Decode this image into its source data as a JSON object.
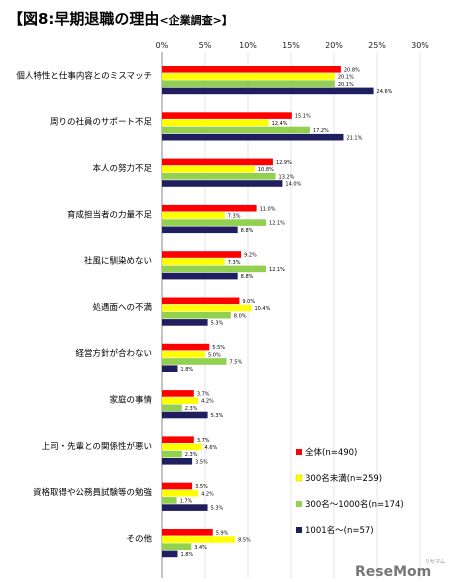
{
  "chart_data": {
    "type": "bar",
    "orientation": "horizontal",
    "title": "【図8:早期退職の理由",
    "subtitle": "<企業調査>】",
    "xlim": [
      0,
      30
    ],
    "x_ticks": [
      "0%",
      "5%",
      "10%",
      "15%",
      "20%",
      "25%",
      "30%"
    ],
    "categories": [
      "個人特性と仕事内容とのミスマッチ",
      "周りの社員のサポート不足",
      "本人の努力不足",
      "育成担当者の力量不足",
      "社風に馴染めない",
      "処遇面への不満",
      "経営方針が合わない",
      "家庭の事情",
      "上司・先輩との関係性が悪い",
      "資格取得や公務員試験等の勉強",
      "その他"
    ],
    "series": [
      {
        "name": "全体(n=490)",
        "color": "#ff0000",
        "values": [
          20.8,
          15.1,
          12.9,
          11.0,
          9.2,
          9.0,
          5.5,
          3.7,
          3.7,
          3.5,
          5.9
        ],
        "labels": [
          "20.8%",
          "15.1%",
          "12.9%",
          "11.0%",
          "9.2%",
          "9.0%",
          "5.5%",
          "3.7%",
          "3.7%",
          "3.5%",
          "5.9%"
        ]
      },
      {
        "name": "300名未満(n=259)",
        "color": "#ffff00",
        "values": [
          20.1,
          12.4,
          10.8,
          7.3,
          7.3,
          10.4,
          5.0,
          4.2,
          4.6,
          4.2,
          8.5
        ],
        "labels": [
          "20.1%",
          "12.4%",
          "10.8%",
          "7.3%",
          "7.3%",
          "10.4%",
          "5.0%",
          "4.2%",
          "4.6%",
          "4.2%",
          "8.5%"
        ]
      },
      {
        "name": "300名～1000名(n=174)",
        "color": "#92d050",
        "values": [
          20.1,
          17.2,
          13.2,
          12.1,
          12.1,
          8.0,
          7.5,
          2.3,
          2.3,
          1.7,
          3.4
        ],
        "labels": [
          "20.1%",
          "17.2%",
          "13.2%",
          "12.1%",
          "12.1%",
          "8.0%",
          "7.5%",
          "2.3%",
          "2.3%",
          "1.7%",
          "3.4%"
        ]
      },
      {
        "name": "1001名～(n=57)",
        "color": "#1f1f5f",
        "values": [
          24.6,
          21.1,
          14.0,
          8.8,
          8.8,
          5.3,
          1.8,
          5.3,
          3.5,
          5.3,
          1.8
        ],
        "labels": [
          "24.6%",
          "21.1%",
          "14.0%",
          "8.8%",
          "8.8%",
          "5.3%",
          "1.8%",
          "5.3%",
          "3.5%",
          "5.3%",
          "1.8%"
        ]
      }
    ],
    "grid": true,
    "legend_position": "bottom-right"
  },
  "watermark": {
    "text": "ReseMom",
    "sub": "リセマム"
  }
}
